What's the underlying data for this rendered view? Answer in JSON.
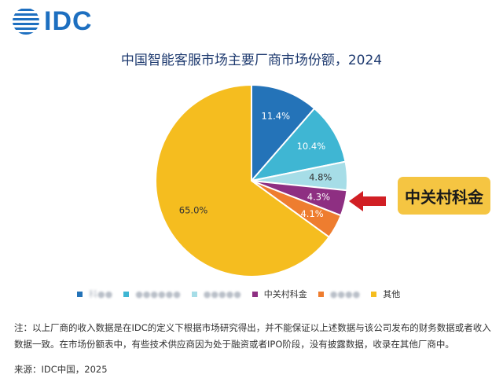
{
  "logo": {
    "text": "IDC"
  },
  "callout": {
    "text": "中关村科金"
  },
  "note": {
    "text": "注：以上厂商的收入数据是在IDC的定义下根据市场研究得出，并不能保证以上述数据与该公司发布的财务数据或者收入数据一致。在市场份额表中，有些技术供应商因为处于融资或者IPO阶段，没有披露数据，收录在其他厂商中。"
  },
  "source": {
    "text": "来源：IDC中国，2025"
  },
  "colors": {
    "accent": "#1d6fc0",
    "arrow": "#d11f24",
    "callout_bg": "#f5c542"
  },
  "chart_data": {
    "type": "pie",
    "title": "中国智能客服市场主要厂商市场份额，2024",
    "slices": [
      {
        "label": "科●●",
        "value": 11.4,
        "value_label": "11.4%",
        "color": "#2473b8",
        "blurred": true
      },
      {
        "label": "●●●●●●",
        "value": 10.4,
        "value_label": "10.4%",
        "color": "#3fb6d3",
        "blurred": true
      },
      {
        "label": "●●●●●",
        "value": 4.8,
        "value_label": "4.8%",
        "color": "#a6dde7",
        "blurred": true
      },
      {
        "label": "中关村科金",
        "value": 4.3,
        "value_label": "4.3%",
        "color": "#8e2f82",
        "blurred": false
      },
      {
        "label": "●●●●",
        "value": 4.1,
        "value_label": "4.1%",
        "color": "#ee7d2f",
        "blurred": true
      },
      {
        "label": "其他",
        "value": 65.0,
        "value_label": "65.0%",
        "color": "#f5bd1f",
        "blurred": false
      }
    ]
  }
}
